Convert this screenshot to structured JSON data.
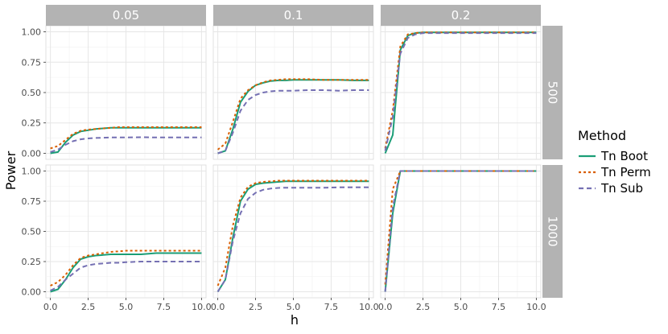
{
  "chart_data": {
    "type": "line",
    "xlabel": "h",
    "ylabel": "Power",
    "xlim": [
      -0.3,
      10.3
    ],
    "ylim": [
      -0.05,
      1.05
    ],
    "x_ticks": [
      "0.0",
      "2.5",
      "5.0",
      "7.5",
      "10.0"
    ],
    "x_tick_values": [
      0,
      2.5,
      5,
      7.5,
      10
    ],
    "y_ticks": [
      "0.00",
      "0.25",
      "0.50",
      "0.75",
      "1.00"
    ],
    "y_tick_values": [
      0,
      0.25,
      0.5,
      0.75,
      1
    ],
    "column_facets": [
      "0.05",
      "0.1",
      "0.2"
    ],
    "row_facets": [
      "500",
      "1000"
    ],
    "legend": {
      "title": "Method",
      "position": "right",
      "entries": [
        {
          "name": "Tn Boot",
          "color": "#1b9e77",
          "dash": "solid"
        },
        {
          "name": "Tn Perm",
          "color": "#d95f02",
          "dash": "dotted"
        },
        {
          "name": "Tn Sub",
          "color": "#7570b3",
          "dash": "dashed"
        }
      ]
    },
    "grid": true,
    "x": [
      0,
      0.5,
      1,
      1.5,
      2,
      2.5,
      3,
      3.5,
      4,
      4.5,
      5,
      6,
      7,
      8,
      9,
      10
    ],
    "panels": [
      {
        "col": "0.05",
        "row": "500",
        "series": [
          {
            "name": "Tn Boot",
            "values": [
              0.0,
              0.01,
              0.09,
              0.15,
              0.18,
              0.19,
              0.2,
              0.205,
              0.21,
              0.21,
              0.21,
              0.21,
              0.21,
              0.21,
              0.21,
              0.21
            ]
          },
          {
            "name": "Tn Perm",
            "values": [
              0.04,
              0.06,
              0.11,
              0.16,
              0.185,
              0.195,
              0.2,
              0.205,
              0.21,
              0.215,
              0.215,
              0.215,
              0.215,
              0.215,
              0.215,
              0.215
            ]
          },
          {
            "name": "Tn Sub",
            "values": [
              0.01,
              0.03,
              0.07,
              0.1,
              0.115,
              0.122,
              0.126,
              0.128,
              0.13,
              0.13,
              0.13,
              0.132,
              0.13,
              0.13,
              0.13,
              0.13
            ]
          }
        ]
      },
      {
        "col": "0.1",
        "row": "500",
        "series": [
          {
            "name": "Tn Boot",
            "values": [
              0.0,
              0.02,
              0.2,
              0.42,
              0.51,
              0.56,
              0.58,
              0.595,
              0.6,
              0.6,
              0.605,
              0.605,
              0.605,
              0.605,
              0.6,
              0.6
            ]
          },
          {
            "name": "Tn Perm",
            "values": [
              0.03,
              0.08,
              0.26,
              0.45,
              0.52,
              0.56,
              0.585,
              0.6,
              0.605,
              0.61,
              0.61,
              0.61,
              0.605,
              0.605,
              0.605,
              0.605
            ]
          },
          {
            "name": "Tn Sub",
            "values": [
              0.0,
              0.02,
              0.17,
              0.35,
              0.44,
              0.48,
              0.5,
              0.51,
              0.515,
              0.515,
              0.515,
              0.52,
              0.52,
              0.515,
              0.52,
              0.52
            ]
          }
        ]
      },
      {
        "col": "0.2",
        "row": "500",
        "series": [
          {
            "name": "Tn Boot",
            "values": [
              0.0,
              0.15,
              0.85,
              0.97,
              0.99,
              0.995,
              0.995,
              0.995,
              0.995,
              0.995,
              0.995,
              0.995,
              0.995,
              0.995,
              0.995,
              0.995
            ]
          },
          {
            "name": "Tn Perm",
            "values": [
              0.04,
              0.35,
              0.88,
              0.98,
              0.99,
              0.995,
              0.995,
              0.995,
              0.995,
              0.995,
              0.995,
              0.995,
              0.995,
              0.995,
              0.995,
              0.995
            ]
          },
          {
            "name": "Tn Sub",
            "values": [
              0.02,
              0.3,
              0.82,
              0.95,
              0.98,
              0.99,
              0.99,
              0.99,
              0.99,
              0.99,
              0.99,
              0.99,
              0.99,
              0.99,
              0.99,
              0.99
            ]
          }
        ]
      },
      {
        "col": "0.05",
        "row": "1000",
        "series": [
          {
            "name": "Tn Boot",
            "values": [
              0.0,
              0.02,
              0.1,
              0.2,
              0.27,
              0.29,
              0.3,
              0.305,
              0.31,
              0.31,
              0.31,
              0.31,
              0.32,
              0.32,
              0.32,
              0.32
            ]
          },
          {
            "name": "Tn Perm",
            "values": [
              0.05,
              0.08,
              0.14,
              0.22,
              0.28,
              0.3,
              0.31,
              0.32,
              0.33,
              0.335,
              0.34,
              0.34,
              0.34,
              0.34,
              0.34,
              0.34
            ]
          },
          {
            "name": "Tn Sub",
            "values": [
              0.01,
              0.04,
              0.1,
              0.15,
              0.2,
              0.22,
              0.23,
              0.235,
              0.24,
              0.24,
              0.245,
              0.25,
              0.25,
              0.25,
              0.25,
              0.25
            ]
          }
        ]
      },
      {
        "col": "0.1",
        "row": "1000",
        "series": [
          {
            "name": "Tn Boot",
            "values": [
              0.0,
              0.1,
              0.45,
              0.75,
              0.85,
              0.89,
              0.9,
              0.905,
              0.91,
              0.915,
              0.915,
              0.915,
              0.915,
              0.915,
              0.915,
              0.915
            ]
          },
          {
            "name": "Tn Perm",
            "values": [
              0.05,
              0.2,
              0.55,
              0.78,
              0.87,
              0.9,
              0.91,
              0.915,
              0.92,
              0.92,
              0.92,
              0.92,
              0.92,
              0.92,
              0.92,
              0.92
            ]
          },
          {
            "name": "Tn Sub",
            "values": [
              0.0,
              0.1,
              0.42,
              0.65,
              0.77,
              0.82,
              0.845,
              0.855,
              0.86,
              0.862,
              0.862,
              0.862,
              0.862,
              0.865,
              0.865,
              0.865
            ]
          }
        ]
      },
      {
        "col": "0.2",
        "row": "1000",
        "series": [
          {
            "name": "Tn Boot",
            "values": [
              0.0,
              0.65,
              1.0,
              1.0,
              1.0,
              1.0,
              1.0,
              1.0,
              1.0,
              1.0,
              1.0,
              1.0,
              1.0,
              1.0,
              1.0,
              1.0
            ]
          },
          {
            "name": "Tn Perm",
            "values": [
              0.06,
              0.85,
              1.0,
              1.0,
              1.0,
              1.0,
              1.0,
              1.0,
              1.0,
              1.0,
              1.0,
              1.0,
              1.0,
              1.0,
              1.0,
              1.0
            ]
          },
          {
            "name": "Tn Sub",
            "values": [
              0.0,
              0.7,
              1.0,
              1.0,
              1.0,
              1.0,
              1.0,
              1.0,
              1.0,
              1.0,
              1.0,
              1.0,
              1.0,
              1.0,
              1.0,
              1.0
            ]
          }
        ]
      }
    ]
  }
}
